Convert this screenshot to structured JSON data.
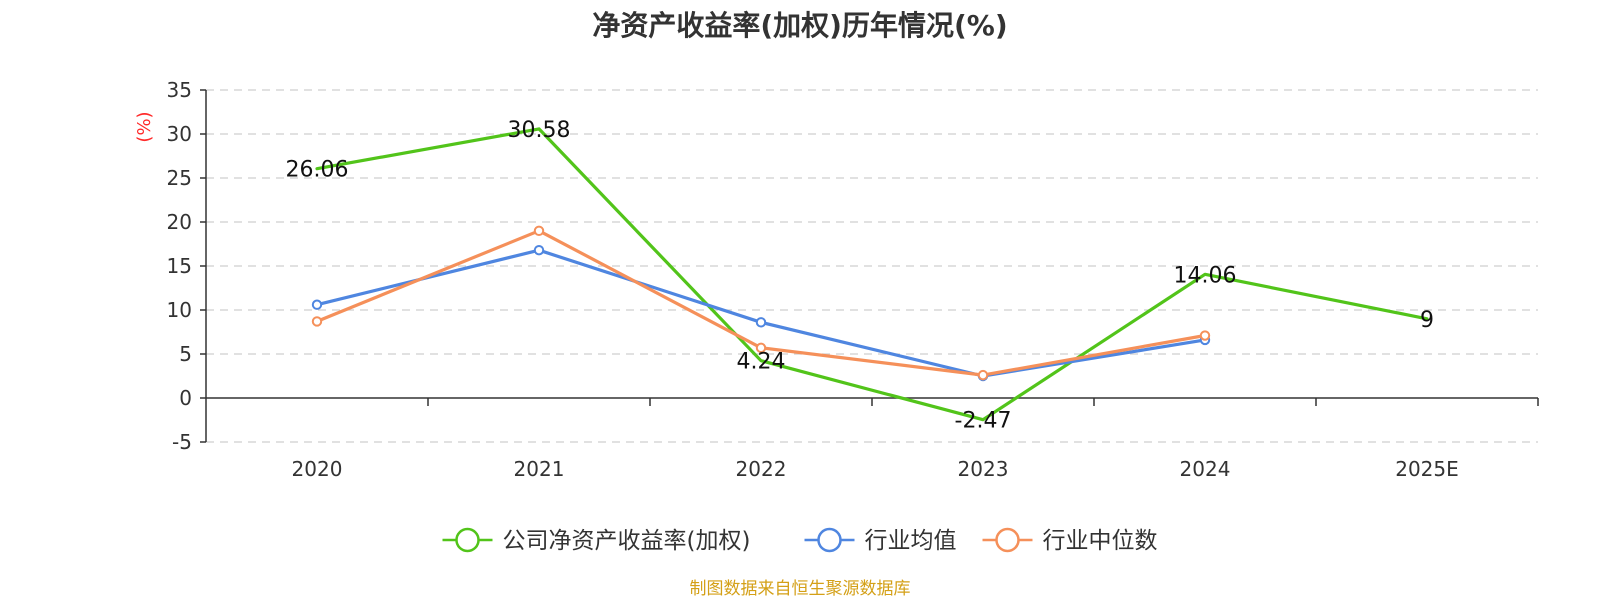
{
  "chart_data": {
    "type": "line",
    "title": "净资产收益率(加权)历年情况(%)",
    "ylabel": "(%)",
    "xlabel": "",
    "categories": [
      "2020",
      "2021",
      "2022",
      "2023",
      "2024",
      "2025E"
    ],
    "ylim": [
      -5,
      35
    ],
    "yticks": [
      -5,
      0,
      5,
      10,
      15,
      20,
      25,
      30,
      35
    ],
    "grid": true,
    "legend_position": "bottom",
    "series": [
      {
        "name": "公司净资产收益率(加权)",
        "color": "#52c41a",
        "values": [
          26.06,
          30.58,
          4.24,
          -2.47,
          14.06,
          9
        ],
        "labels": [
          "26.06",
          "30.58",
          "4.24",
          "-2.47",
          "14.06",
          "9"
        ],
        "show_markers": false,
        "show_labels": true
      },
      {
        "name": "行业均值",
        "color": "#4f86e0",
        "values": [
          10.6,
          16.8,
          8.6,
          2.5,
          6.6,
          null
        ],
        "show_markers": true,
        "show_labels": false
      },
      {
        "name": "行业中位数",
        "color": "#f5905a",
        "values": [
          8.7,
          19.0,
          5.7,
          2.6,
          7.1,
          null
        ],
        "show_markers": true,
        "show_labels": false
      }
    ]
  },
  "footer": {
    "source": "制图数据来自恒生聚源数据库"
  }
}
